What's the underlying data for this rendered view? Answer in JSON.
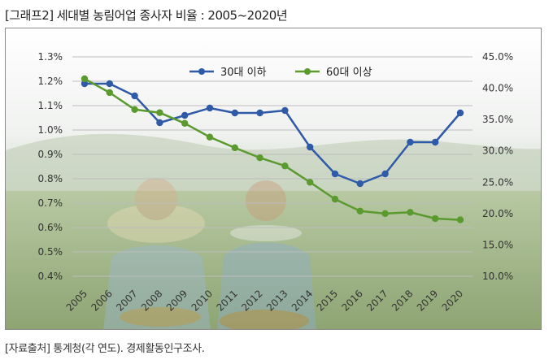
{
  "title": "[그래프2] 세대별 농림어업 종사자 비율 : 2005~2020년",
  "source": "[자료출처] 통계청(각 연도). 경제활동인구조사.",
  "colors": {
    "series1": "#2f5aa8",
    "series2": "#5a9a2e",
    "grid": "#bdbdbd"
  },
  "chart_data": {
    "type": "line",
    "x": [
      "2005",
      "2006",
      "2007",
      "2008",
      "2009",
      "2010",
      "2011",
      "2012",
      "2013",
      "2014",
      "2015",
      "2016",
      "2017",
      "2018",
      "2019",
      "2020"
    ],
    "left_axis": {
      "ticks": [
        "1.3%",
        "1.2%",
        "1.1%",
        "1.0%",
        "0.9%",
        "0.8%",
        "0.7%",
        "0.6%",
        "0.5%",
        "0.4%"
      ],
      "ylim": [
        0.4,
        1.3
      ]
    },
    "right_axis": {
      "ticks": [
        "45.0%",
        "40.0%",
        "35.0%",
        "30.0%",
        "25.0%",
        "20.0%",
        "15.0%",
        "10.0%"
      ],
      "ylim": [
        10,
        45
      ]
    },
    "grid": true,
    "legend_position": "top",
    "series": [
      {
        "name": "30대 이하",
        "axis": "left",
        "values": [
          1.19,
          1.19,
          1.14,
          1.03,
          1.06,
          1.09,
          1.07,
          1.07,
          1.08,
          0.93,
          0.82,
          0.78,
          0.82,
          0.95,
          0.95,
          1.07
        ]
      },
      {
        "name": "60대 이상",
        "axis": "right",
        "values": [
          41.5,
          39.3,
          36.6,
          36.1,
          34.4,
          32.2,
          30.5,
          28.9,
          27.6,
          25.0,
          22.3,
          20.4,
          20.0,
          20.2,
          19.2,
          19.0
        ]
      }
    ]
  }
}
